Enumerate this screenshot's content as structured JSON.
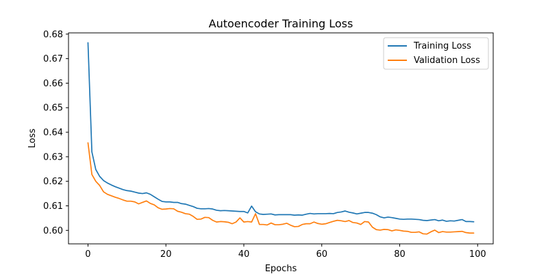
{
  "chart_data": {
    "type": "line",
    "title": "Autoencoder Training Loss",
    "xlabel": "Epochs",
    "ylabel": "Loss",
    "xlim": [
      -5,
      104
    ],
    "ylim": [
      0.5945,
      0.6805
    ],
    "xticks": [
      0,
      20,
      40,
      60,
      80,
      100
    ],
    "yticks": [
      0.6,
      0.61,
      0.62,
      0.63,
      0.64,
      0.65,
      0.66,
      0.67,
      0.68
    ],
    "ytick_labels": [
      "0.60",
      "0.61",
      "0.62",
      "0.63",
      "0.64",
      "0.65",
      "0.66",
      "0.67",
      "0.68"
    ],
    "grid": false,
    "legend_position": "top-right",
    "series": [
      {
        "name": "Training Loss",
        "color": "#1f77b4",
        "values": [
          0.6765,
          0.632,
          0.6248,
          0.622,
          0.6203,
          0.6193,
          0.6185,
          0.6178,
          0.6172,
          0.6166,
          0.6162,
          0.616,
          0.6156,
          0.6152,
          0.615,
          0.6153,
          0.6147,
          0.6137,
          0.6127,
          0.6118,
          0.6116,
          0.6116,
          0.6114,
          0.6114,
          0.6109,
          0.6107,
          0.6102,
          0.6097,
          0.609,
          0.6088,
          0.6088,
          0.6089,
          0.6087,
          0.6082,
          0.608,
          0.6081,
          0.608,
          0.6079,
          0.6078,
          0.6077,
          0.6077,
          0.6071,
          0.6099,
          0.6076,
          0.6067,
          0.6065,
          0.6066,
          0.6067,
          0.6063,
          0.6064,
          0.6064,
          0.6064,
          0.6064,
          0.6062,
          0.6063,
          0.6062,
          0.6066,
          0.6069,
          0.6067,
          0.6068,
          0.6068,
          0.6068,
          0.6069,
          0.6068,
          0.6073,
          0.6075,
          0.6079,
          0.6074,
          0.6071,
          0.6067,
          0.607,
          0.6073,
          0.6073,
          0.607,
          0.6064,
          0.6055,
          0.6051,
          0.6054,
          0.6052,
          0.6049,
          0.6046,
          0.6045,
          0.6046,
          0.6046,
          0.6045,
          0.6044,
          0.6041,
          0.604,
          0.6042,
          0.6044,
          0.6039,
          0.6042,
          0.6037,
          0.6039,
          0.6038,
          0.6041,
          0.6044,
          0.6036,
          0.6036,
          0.6035
        ]
      },
      {
        "name": "Validation Loss",
        "color": "#ff7f0e",
        "values": [
          0.6357,
          0.6228,
          0.62,
          0.6183,
          0.6157,
          0.6147,
          0.6141,
          0.6135,
          0.613,
          0.6124,
          0.6119,
          0.6119,
          0.6116,
          0.6108,
          0.6114,
          0.612,
          0.611,
          0.6104,
          0.6092,
          0.6086,
          0.6087,
          0.6089,
          0.6088,
          0.6078,
          0.6074,
          0.6068,
          0.6066,
          0.6057,
          0.6045,
          0.6046,
          0.6053,
          0.6052,
          0.6041,
          0.6034,
          0.6036,
          0.6035,
          0.6033,
          0.6027,
          0.6034,
          0.6051,
          0.6034,
          0.6036,
          0.6034,
          0.6068,
          0.6024,
          0.6024,
          0.6022,
          0.603,
          0.6023,
          0.6023,
          0.6025,
          0.6029,
          0.6021,
          0.6015,
          0.6016,
          0.6024,
          0.6027,
          0.6027,
          0.6034,
          0.6028,
          0.6025,
          0.6027,
          0.6032,
          0.6037,
          0.6041,
          0.6039,
          0.6036,
          0.604,
          0.6032,
          0.603,
          0.6024,
          0.6036,
          0.6034,
          0.6013,
          0.6003,
          0.6001,
          0.6004,
          0.6003,
          0.5998,
          0.6002,
          0.6,
          0.5997,
          0.5996,
          0.5992,
          0.5992,
          0.5994,
          0.5986,
          0.5985,
          0.5994,
          0.6001,
          0.5991,
          0.5995,
          0.5993,
          0.5993,
          0.5994,
          0.5995,
          0.5996,
          0.5991,
          0.5989,
          0.5989
        ]
      }
    ]
  }
}
